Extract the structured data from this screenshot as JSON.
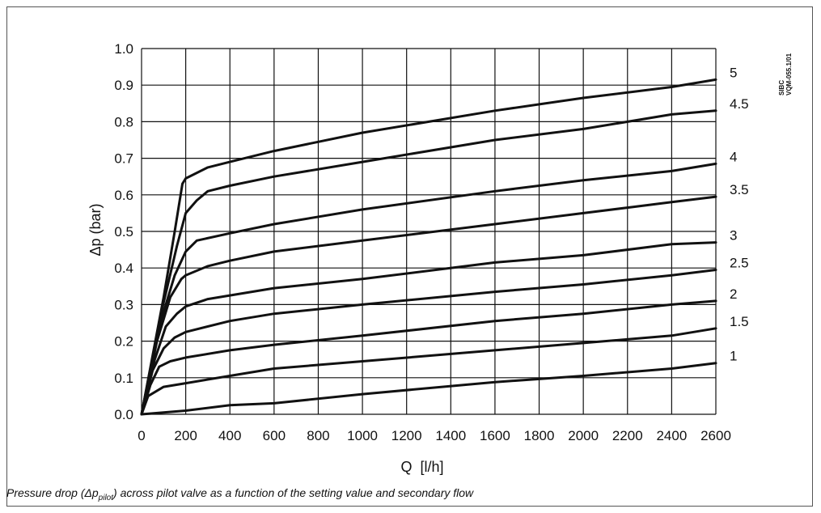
{
  "chart_data": {
    "type": "line",
    "title": "",
    "xlabel": "Q  [l/h]",
    "ylabel": "Δp  (bar)",
    "xlim": [
      0,
      2600
    ],
    "ylim": [
      0,
      1.0
    ],
    "xticks": [
      "0",
      "200",
      "400",
      "600",
      "800",
      "1000",
      "1200",
      "1400",
      "1600",
      "1800",
      "2000",
      "2200",
      "2400",
      "2600"
    ],
    "yticks": [
      "0.0",
      "0.1",
      "0.2",
      "0.3",
      "0.4",
      "0.5",
      "0.6",
      "0.7",
      "0.8",
      "0.9",
      "1.0"
    ],
    "grid": true,
    "line_color": "#111111",
    "series": [
      {
        "name": "1",
        "points": [
          [
            0,
            0
          ],
          [
            100,
            0.005
          ],
          [
            200,
            0.01
          ],
          [
            400,
            0.025
          ],
          [
            600,
            0.03
          ],
          [
            1000,
            0.055
          ],
          [
            1600,
            0.088
          ],
          [
            2000,
            0.105
          ],
          [
            2400,
            0.125
          ],
          [
            2600,
            0.14
          ]
        ]
      },
      {
        "name": "1.5",
        "points": [
          [
            0,
            0
          ],
          [
            30,
            0.05
          ],
          [
            100,
            0.075
          ],
          [
            200,
            0.085
          ],
          [
            400,
            0.105
          ],
          [
            600,
            0.125
          ],
          [
            1000,
            0.145
          ],
          [
            1600,
            0.175
          ],
          [
            2000,
            0.195
          ],
          [
            2400,
            0.215
          ],
          [
            2600,
            0.235
          ]
        ]
      },
      {
        "name": "2",
        "points": [
          [
            0,
            0
          ],
          [
            40,
            0.08
          ],
          [
            80,
            0.13
          ],
          [
            130,
            0.145
          ],
          [
            200,
            0.155
          ],
          [
            400,
            0.175
          ],
          [
            600,
            0.19
          ],
          [
            1000,
            0.215
          ],
          [
            1600,
            0.255
          ],
          [
            2000,
            0.275
          ],
          [
            2400,
            0.3
          ],
          [
            2600,
            0.31
          ]
        ]
      },
      {
        "name": "2.5",
        "points": [
          [
            0,
            0
          ],
          [
            50,
            0.12
          ],
          [
            100,
            0.18
          ],
          [
            150,
            0.21
          ],
          [
            200,
            0.225
          ],
          [
            400,
            0.255
          ],
          [
            600,
            0.275
          ],
          [
            1000,
            0.3
          ],
          [
            1600,
            0.335
          ],
          [
            2000,
            0.355
          ],
          [
            2400,
            0.38
          ],
          [
            2600,
            0.395
          ]
        ]
      },
      {
        "name": "3",
        "points": [
          [
            0,
            0
          ],
          [
            60,
            0.15
          ],
          [
            110,
            0.24
          ],
          [
            160,
            0.275
          ],
          [
            200,
            0.295
          ],
          [
            300,
            0.315
          ],
          [
            400,
            0.325
          ],
          [
            600,
            0.345
          ],
          [
            1000,
            0.37
          ],
          [
            1600,
            0.415
          ],
          [
            2000,
            0.435
          ],
          [
            2400,
            0.465
          ],
          [
            2600,
            0.47
          ]
        ]
      },
      {
        "name": "3.5",
        "points": [
          [
            0,
            0
          ],
          [
            70,
            0.2
          ],
          [
            130,
            0.32
          ],
          [
            180,
            0.37
          ],
          [
            200,
            0.38
          ],
          [
            300,
            0.405
          ],
          [
            400,
            0.42
          ],
          [
            600,
            0.445
          ],
          [
            1000,
            0.475
          ],
          [
            1600,
            0.52
          ],
          [
            2000,
            0.55
          ],
          [
            2400,
            0.58
          ],
          [
            2600,
            0.595
          ]
        ]
      },
      {
        "name": "4",
        "points": [
          [
            0,
            0
          ],
          [
            80,
            0.24
          ],
          [
            150,
            0.38
          ],
          [
            200,
            0.445
          ],
          [
            250,
            0.475
          ],
          [
            400,
            0.495
          ],
          [
            600,
            0.52
          ],
          [
            1000,
            0.56
          ],
          [
            1600,
            0.61
          ],
          [
            2000,
            0.64
          ],
          [
            2400,
            0.665
          ],
          [
            2600,
            0.685
          ]
        ]
      },
      {
        "name": "4.5",
        "points": [
          [
            0,
            0
          ],
          [
            90,
            0.28
          ],
          [
            160,
            0.46
          ],
          [
            200,
            0.55
          ],
          [
            250,
            0.585
          ],
          [
            300,
            0.61
          ],
          [
            400,
            0.625
          ],
          [
            600,
            0.65
          ],
          [
            1000,
            0.69
          ],
          [
            1600,
            0.75
          ],
          [
            2000,
            0.78
          ],
          [
            2400,
            0.82
          ],
          [
            2600,
            0.83
          ]
        ]
      },
      {
        "name": "5",
        "points": [
          [
            0,
            0
          ],
          [
            100,
            0.32
          ],
          [
            150,
            0.5
          ],
          [
            185,
            0.63
          ],
          [
            200,
            0.645
          ],
          [
            300,
            0.675
          ],
          [
            400,
            0.69
          ],
          [
            600,
            0.72
          ],
          [
            1000,
            0.77
          ],
          [
            1600,
            0.83
          ],
          [
            2000,
            0.865
          ],
          [
            2400,
            0.895
          ],
          [
            2600,
            0.915
          ]
        ]
      }
    ]
  },
  "document_code": [
    "SIBC",
    "VQM-055.1/01"
  ],
  "caption": {
    "before": "Pressure drop (Δp",
    "subscript": "pilot",
    "after": ") across pilot valve as a function of the setting value and secondary flow"
  }
}
